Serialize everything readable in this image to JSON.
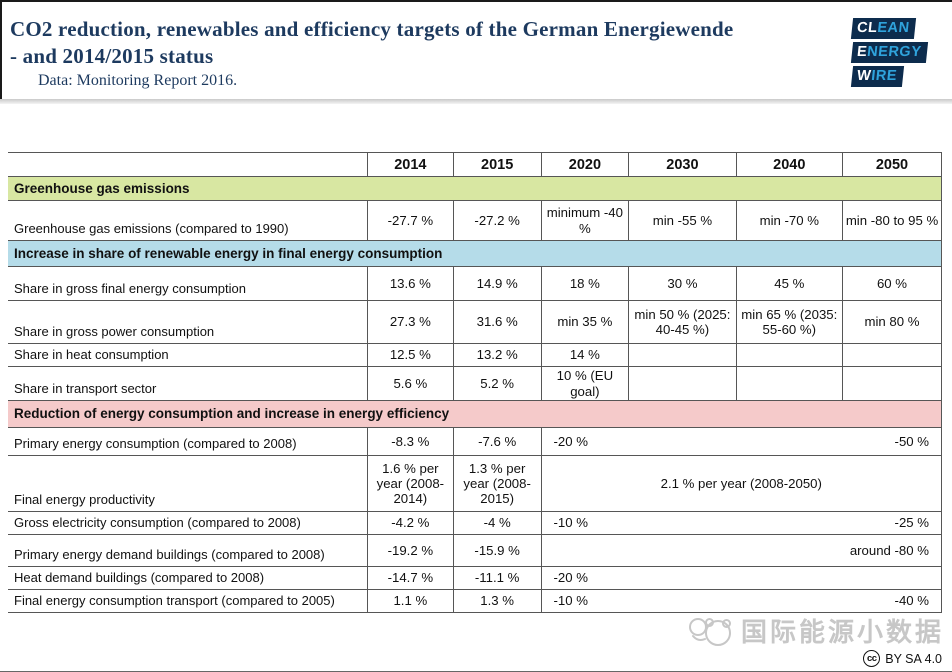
{
  "header": {
    "title_line1": "CO2 reduction, renewables and efficiency targets of the German Energiewende",
    "title_line2": "- and 2014/2015 status",
    "subtitle": "Data: Monitoring Report 2016.",
    "logo_lines": [
      {
        "strong": "CL",
        "rest": "EAN"
      },
      {
        "strong": "E",
        "rest": "NERGY"
      },
      {
        "strong": "W",
        "rest": "IRE"
      }
    ]
  },
  "colors": {
    "title_navy": "#1d3a5f",
    "logo_background": "#0d2c4d",
    "logo_strong_text": "#ffffff",
    "logo_light_text": "#2fa3dc",
    "section_green": "#d8e7a2",
    "section_blue": "#b5dce9",
    "section_pink": "#f5caca"
  },
  "chart_data": {
    "type": "table",
    "title": "CO2 reduction, renewables and efficiency targets of the German Energiewende - and 2014/2015 status",
    "source": "Data: Monitoring Report 2016.",
    "year_columns": [
      "2014",
      "2015",
      "2020",
      "2030",
      "2040",
      "2050"
    ],
    "rows": [
      {
        "type": "section",
        "color": "section_green",
        "label": "Greenhouse gas emissions"
      },
      {
        "type": "data",
        "label": "Greenhouse gas emissions (compared to 1990)",
        "cells": [
          "-27.7 %",
          "-27.2 %",
          "minimum -40 %",
          "min -55 %",
          "min -70 %",
          "min -80 to 95 %"
        ]
      },
      {
        "type": "section",
        "color": "section_blue",
        "label": "Increase in share of renewable energy in final energy consumption"
      },
      {
        "type": "data",
        "label": "Share in gross final energy consumption",
        "cells": [
          "13.6 %",
          "14.9 %",
          "18 %",
          "30 %",
          "45 %",
          "60 %"
        ]
      },
      {
        "type": "data",
        "label": "Share in gross power consumption",
        "cells": [
          "27.3 %",
          "31.6 %",
          "min 35 %",
          "min 50 % (2025: 40-45 %)",
          "min 65 % (2035: 55-60 %)",
          "min 80 %"
        ]
      },
      {
        "type": "data",
        "label": "Share in heat consumption",
        "cells": [
          "12.5 %",
          "13.2 %",
          "14 %",
          "",
          "",
          ""
        ]
      },
      {
        "type": "data",
        "label": "Share in transport sector",
        "cells": [
          "5.6 %",
          "5.2 %",
          "10 % (EU goal)",
          "",
          "",
          ""
        ]
      },
      {
        "type": "section",
        "color": "section_pink",
        "label": "Reduction of energy consumption and increase in energy efficiency"
      },
      {
        "type": "data",
        "label": "Primary energy consumption (compared to 2008)",
        "cells": [
          "-8.3 %",
          "-7.6 %"
        ],
        "span_2020_2050": {
          "left": "-20 %",
          "right": "-50 %"
        }
      },
      {
        "type": "data",
        "label": "Final energy productivity",
        "cells": [
          "1.6 % per year (2008-2014)",
          "1.3 % per year (2008-2015)"
        ],
        "span_2020_2050": {
          "center": "2.1 % per year (2008-2050)"
        }
      },
      {
        "type": "data",
        "label": "Gross electricity consumption (compared to 2008)",
        "cells": [
          "-4.2 %",
          "-4 %"
        ],
        "span_2020_2050": {
          "left": "-10 %",
          "right": "-25 %"
        }
      },
      {
        "type": "data",
        "label": "Primary energy demand buildings (compared to 2008)",
        "cells": [
          "-19.2 %",
          "-15.9 %"
        ],
        "span_2020_2050": {
          "left": "",
          "right": "around -80 %"
        }
      },
      {
        "type": "data",
        "label": "Heat demand buildings (compared to 2008)",
        "cells": [
          "-14.7 %",
          "-11.1 %"
        ],
        "span_2020_2050": {
          "left": "-20 %",
          "right": ""
        }
      },
      {
        "type": "data",
        "label": "Final energy consumption transport (compared to 2005)",
        "cells": [
          "1.1 %",
          "1.3 %"
        ],
        "span_2020_2050": {
          "left": "-10 %",
          "right": "-40 %"
        }
      }
    ]
  },
  "footer": {
    "watermark": "国际能源小数据",
    "license_badge": "cc",
    "license_text": "BY SA 4.0"
  }
}
